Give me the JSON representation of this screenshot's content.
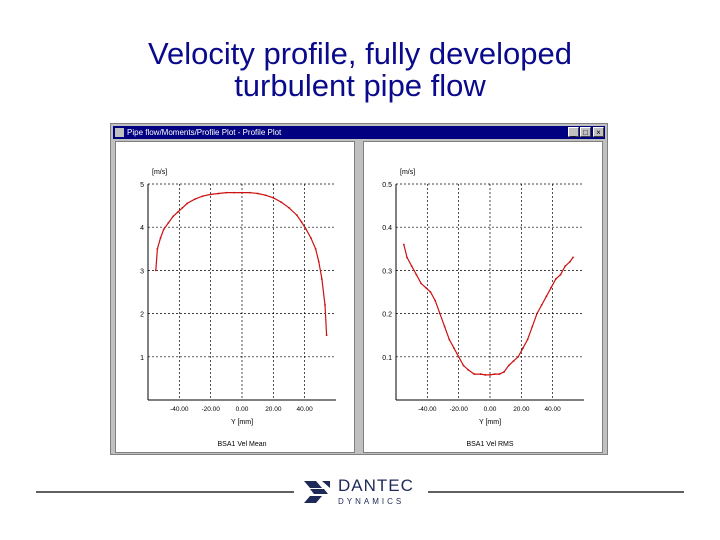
{
  "slide": {
    "title_line1": "Velocity profile, fully developed",
    "title_line2": "turbulent pipe flow"
  },
  "window": {
    "title": "Pipe flow/Moments/Profile Plot - Profile Plot",
    "minimize_label": "_",
    "maximize_label": "□",
    "close_label": "×"
  },
  "colors": {
    "curve": "#cc1111",
    "title": "#0a0a8c",
    "titlebar": "#000080",
    "logo": "#1d2a57"
  },
  "logo": {
    "name": "DANTEC",
    "sub": "DYNAMICS",
    "icon": "dantec-logo-icon"
  },
  "chart_data": [
    {
      "type": "line",
      "title": "",
      "ylabel": "[m/s]",
      "xlabel": "Y [mm]",
      "series_label": "BSA1 Vel Mean",
      "ylim": [
        0,
        5
      ],
      "xlim": [
        -60,
        60
      ],
      "yticks": [
        "5",
        "4",
        "3",
        "2",
        "1"
      ],
      "xticks": [
        "-40.00",
        "-20.00",
        "0.00",
        "20.00",
        "40.00"
      ],
      "series": [
        {
          "x": [
            -55,
            -54,
            -52,
            -50,
            -47,
            -44,
            -41,
            -38,
            -35,
            -30,
            -25,
            -20,
            -15,
            -10,
            -5,
            0,
            5,
            10,
            15,
            20,
            25,
            30,
            35,
            38,
            41,
            44,
            47,
            49,
            51,
            53,
            54
          ],
          "y": [
            3.0,
            3.5,
            3.75,
            3.95,
            4.1,
            4.25,
            4.35,
            4.45,
            4.55,
            4.65,
            4.72,
            4.76,
            4.78,
            4.8,
            4.8,
            4.8,
            4.8,
            4.78,
            4.74,
            4.68,
            4.58,
            4.45,
            4.28,
            4.12,
            3.95,
            3.75,
            3.5,
            3.2,
            2.8,
            2.2,
            1.5
          ]
        }
      ]
    },
    {
      "type": "line",
      "title": "",
      "ylabel": "[m/s]",
      "xlabel": "Y [mm]",
      "series_label": "BSA1 Vel RMS",
      "ylim": [
        0,
        0.5
      ],
      "xlim": [
        -60,
        60
      ],
      "yticks": [
        "0.5",
        "0.4",
        "0.3",
        "0.2",
        "0.1"
      ],
      "xticks": [
        "-40.00",
        "-20.00",
        "0.00",
        "20.00",
        "40.00"
      ],
      "series": [
        {
          "x": [
            -55,
            -53,
            -50,
            -47,
            -44,
            -41,
            -38,
            -35,
            -32,
            -29,
            -26,
            -23,
            -20,
            -17,
            -14,
            -10,
            -6,
            -3,
            0,
            3,
            6,
            9,
            12,
            15,
            18,
            21,
            24,
            27,
            30,
            33,
            36,
            39,
            42,
            45,
            48,
            51,
            53
          ],
          "y": [
            0.36,
            0.33,
            0.31,
            0.29,
            0.27,
            0.26,
            0.25,
            0.23,
            0.2,
            0.17,
            0.14,
            0.12,
            0.1,
            0.08,
            0.07,
            0.06,
            0.06,
            0.058,
            0.058,
            0.06,
            0.06,
            0.065,
            0.08,
            0.09,
            0.1,
            0.12,
            0.14,
            0.17,
            0.2,
            0.22,
            0.24,
            0.26,
            0.28,
            0.29,
            0.31,
            0.32,
            0.33
          ]
        }
      ]
    }
  ]
}
